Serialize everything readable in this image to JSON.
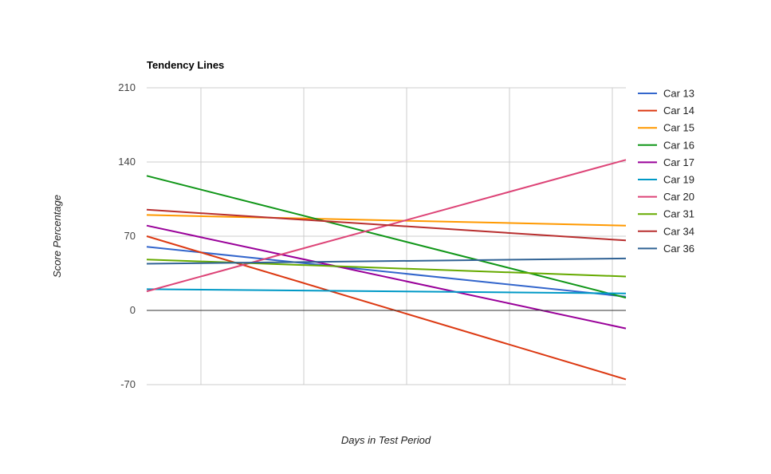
{
  "chart_data": {
    "type": "line",
    "title": "Tendency Lines",
    "xlabel": "Days in Test Period",
    "ylabel": "Score Percentage",
    "ylim": [
      -70,
      210
    ],
    "yticks": [
      "-70",
      "0",
      "70",
      "140",
      "210"
    ],
    "grid": true,
    "legend_position": "right",
    "series": [
      {
        "name": "Car 13",
        "color": "#3366cc",
        "values": [
          60,
          13
        ]
      },
      {
        "name": "Car 14",
        "color": "#dc3912",
        "values": [
          70,
          -65
        ]
      },
      {
        "name": "Car 15",
        "color": "#ff9900",
        "values": [
          90,
          80
        ]
      },
      {
        "name": "Car 16",
        "color": "#109618",
        "values": [
          127,
          12
        ]
      },
      {
        "name": "Car 17",
        "color": "#990099",
        "values": [
          80,
          -17
        ]
      },
      {
        "name": "Car 19",
        "color": "#0099c6",
        "values": [
          20,
          16
        ]
      },
      {
        "name": "Car 20",
        "color": "#dd4477",
        "values": [
          18,
          142
        ]
      },
      {
        "name": "Car 31",
        "color": "#66aa00",
        "values": [
          48,
          32
        ]
      },
      {
        "name": "Car 34",
        "color": "#b82e2e",
        "values": [
          95,
          66
        ]
      },
      {
        "name": "Car 36",
        "color": "#316395",
        "values": [
          44,
          49
        ]
      }
    ]
  }
}
